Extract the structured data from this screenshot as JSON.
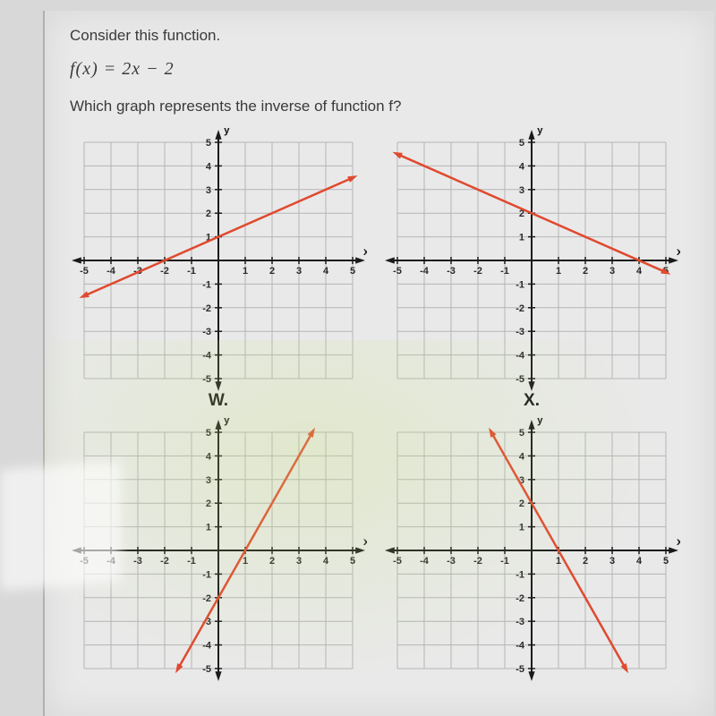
{
  "question_line1": "Consider this function.",
  "formula": "f(x)  =  2x  −  2",
  "question_line2": "Which graph represents the inverse of function f?",
  "axis": {
    "xmin": -5,
    "xmax": 5,
    "ymin": -5,
    "ymax": 5,
    "tick_step": 1,
    "x_label": "x",
    "y_label": "y",
    "grid_color": "#b5b5b5",
    "axis_color": "#1a1a1a",
    "background": "#e9e9e9",
    "axis_width": 2,
    "grid_width": 1
  },
  "line_style": {
    "color": "#e0492f",
    "width": 2.5,
    "arrow_size": 6
  },
  "labels": {
    "w": "W.",
    "x": "X."
  },
  "graphs": {
    "topLeft": {
      "slope": 0.5,
      "intercept": 1,
      "letter_key": "w"
    },
    "topRight": {
      "slope": -0.5,
      "intercept": 2,
      "letter_key": "x"
    },
    "botLeft": {
      "slope": 2,
      "intercept": -2
    },
    "botRight": {
      "slope": -2,
      "intercept": 2
    }
  }
}
